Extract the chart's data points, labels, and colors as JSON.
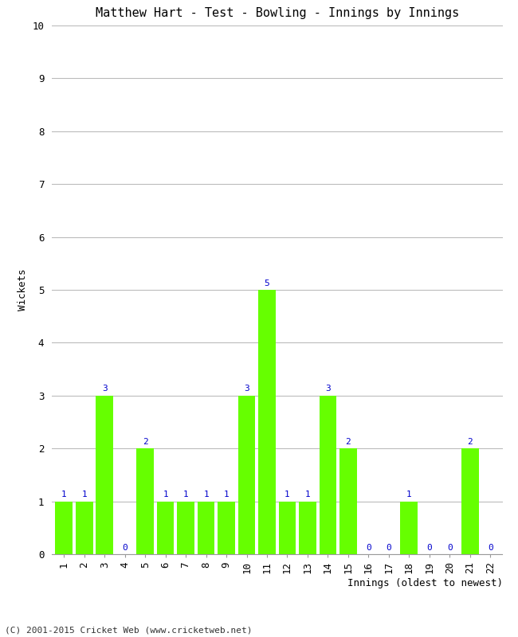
{
  "title": "Matthew Hart - Test - Bowling - Innings by Innings",
  "xlabel": "Innings (oldest to newest)",
  "ylabel": "Wickets",
  "categories": [
    "1",
    "2",
    "3",
    "4",
    "5",
    "6",
    "7",
    "8",
    "9",
    "10",
    "11",
    "12",
    "13",
    "14",
    "15",
    "16",
    "17",
    "18",
    "19",
    "20",
    "21",
    "22"
  ],
  "values": [
    1,
    1,
    3,
    0,
    2,
    1,
    1,
    1,
    1,
    3,
    5,
    1,
    1,
    3,
    2,
    0,
    0,
    1,
    0,
    0,
    2,
    0
  ],
  "bar_color": "#66ff00",
  "label_color": "#0000cc",
  "background_color": "#ffffff",
  "grid_color": "#bbbbbb",
  "ylim": [
    0,
    10
  ],
  "yticks": [
    0,
    1,
    2,
    3,
    4,
    5,
    6,
    7,
    8,
    9,
    10
  ],
  "footer": "(C) 2001-2015 Cricket Web (www.cricketweb.net)",
  "title_fontsize": 11,
  "label_fontsize": 9,
  "tick_fontsize": 9,
  "footer_fontsize": 8,
  "value_label_fontsize": 8
}
